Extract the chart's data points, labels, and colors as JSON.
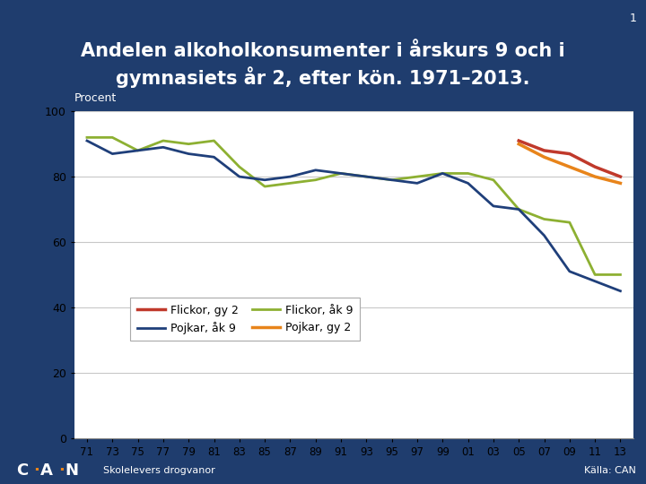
{
  "title_line1": "Andelen alkoholkonsumenter i årskurs 9 och i",
  "title_line2": "gymnasiets år 2, efter kön. 1971–2013.",
  "ylabel": "Procent",
  "source": "Källa: CAN",
  "footer": "Skolelevers drogvanor",
  "bg_color": "#1F3D6E",
  "x_numeric": [
    1971,
    1973,
    1975,
    1977,
    1979,
    1981,
    1983,
    1985,
    1987,
    1989,
    1991,
    1993,
    1995,
    1997,
    1999,
    2001,
    2003,
    2005,
    2007,
    2009,
    2011,
    2013
  ],
  "pojkar_ak9": [
    91,
    87,
    88,
    89,
    87,
    86,
    80,
    79,
    80,
    82,
    81,
    80,
    79,
    78,
    81,
    78,
    71,
    70,
    62,
    51,
    48,
    45
  ],
  "flickor_ak9": [
    92,
    92,
    88,
    91,
    90,
    91,
    83,
    77,
    78,
    79,
    81,
    80,
    79,
    80,
    81,
    81,
    79,
    70,
    67,
    66,
    50,
    50
  ],
  "flickor_gy2": [
    null,
    null,
    null,
    null,
    null,
    null,
    null,
    null,
    null,
    null,
    null,
    null,
    null,
    null,
    null,
    null,
    null,
    91,
    88,
    87,
    83,
    80
  ],
  "pojkar_gy2": [
    null,
    null,
    null,
    null,
    null,
    null,
    null,
    null,
    null,
    null,
    null,
    null,
    null,
    null,
    null,
    null,
    null,
    90,
    86,
    83,
    80,
    78
  ],
  "color_pojkar_ak9": "#1F3F7A",
  "color_flickor_ak9": "#8DB032",
  "color_flickor_gy2": "#C0392B",
  "color_pojkar_gy2": "#E8841A",
  "ylim": [
    0,
    100
  ],
  "yticks": [
    0,
    20,
    40,
    60,
    80,
    100
  ],
  "xtick_labels": [
    "71",
    "73",
    "75",
    "77",
    "79",
    "81",
    "83",
    "85",
    "87",
    "89",
    "91",
    "93",
    "95",
    "97",
    "99",
    "01",
    "03",
    "05",
    "07",
    "09",
    "11",
    "13"
  ]
}
